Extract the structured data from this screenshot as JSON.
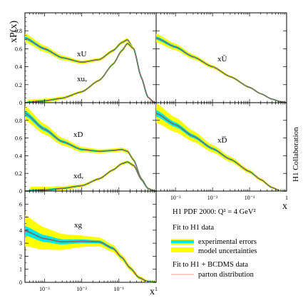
{
  "figure": {
    "ylabel": "xP(x)",
    "xlabel_right": "x",
    "xlabel_bottom": "x",
    "side_label": "H1 Collaboration",
    "legend": {
      "title": "H1 PDF 2000:  Q² = 4 GeV²",
      "group1": "Fit to H1 data",
      "exp_errors": "experimental errors",
      "model_unc": "model uncertainties",
      "group2": "Fit to H1 + BCDMS data",
      "parton": "parton distribution"
    },
    "colors": {
      "yellow_band": "#ffff00",
      "cyan_band": "#00e5ee",
      "central": "#1a4fa0",
      "outline": "#3a9a3a",
      "parton": "#ff6a6a"
    },
    "x_tick_labels": [
      "10⁻³",
      "10⁻²",
      "10⁻¹",
      "1"
    ],
    "y_ticks_top": [
      "0",
      "0.2",
      "0.4",
      "0.6",
      "0.8"
    ],
    "y_ticks_bottom": [
      "0",
      "1",
      "2",
      "3",
      "4",
      "5",
      "6"
    ]
  },
  "chart_data": [
    {
      "type": "line",
      "panel": "xU",
      "x_scale": "log",
      "xlim": [
        0.0003,
        1
      ],
      "ylim": [
        0,
        1
      ],
      "series": [
        {
          "name": "xU",
          "x": [
            0.0003,
            0.001,
            0.003,
            0.01,
            0.03,
            0.07,
            0.12,
            0.17,
            0.25,
            0.4,
            0.6,
            0.9
          ],
          "y": [
            0.72,
            0.6,
            0.5,
            0.45,
            0.48,
            0.58,
            0.67,
            0.7,
            0.6,
            0.28,
            0.06,
            0.0
          ]
        },
        {
          "name": "xuᵥ",
          "x": [
            0.0003,
            0.001,
            0.003,
            0.01,
            0.03,
            0.07,
            0.12,
            0.17,
            0.25,
            0.4,
            0.6,
            0.9
          ],
          "y": [
            0.0,
            0.02,
            0.05,
            0.12,
            0.25,
            0.43,
            0.58,
            0.66,
            0.6,
            0.28,
            0.06,
            0.0
          ]
        }
      ]
    },
    {
      "type": "line",
      "panel": "xUbar",
      "x_scale": "log",
      "xlim": [
        0.0003,
        1
      ],
      "ylim": [
        0,
        1
      ],
      "series": [
        {
          "name": "xŪ",
          "x": [
            0.0003,
            0.001,
            0.003,
            0.01,
            0.03,
            0.1,
            0.2,
            0.4,
            0.7,
            1.0
          ],
          "y": [
            0.72,
            0.62,
            0.51,
            0.4,
            0.29,
            0.17,
            0.1,
            0.04,
            0.01,
            0.0
          ]
        }
      ]
    },
    {
      "type": "line",
      "panel": "xD",
      "x_scale": "log",
      "xlim": [
        0.0003,
        1
      ],
      "ylim": [
        0,
        1
      ],
      "series": [
        {
          "name": "xD",
          "x": [
            0.0003,
            0.001,
            0.003,
            0.01,
            0.03,
            0.07,
            0.12,
            0.17,
            0.25,
            0.4,
            0.6,
            0.9
          ],
          "y": [
            0.88,
            0.7,
            0.56,
            0.47,
            0.45,
            0.46,
            0.47,
            0.45,
            0.35,
            0.14,
            0.03,
            0.0
          ]
        },
        {
          "name": "xdᵥ",
          "x": [
            0.0003,
            0.001,
            0.003,
            0.01,
            0.03,
            0.07,
            0.12,
            0.17,
            0.25,
            0.4,
            0.6,
            0.9
          ],
          "y": [
            0.0,
            0.01,
            0.03,
            0.06,
            0.14,
            0.24,
            0.31,
            0.33,
            0.29,
            0.13,
            0.03,
            0.0
          ]
        }
      ]
    },
    {
      "type": "line",
      "panel": "xDbar",
      "x_scale": "log",
      "xlim": [
        0.0003,
        1
      ],
      "ylim": [
        0,
        1
      ],
      "series": [
        {
          "name": "xD̅",
          "x": [
            0.0003,
            0.001,
            0.003,
            0.01,
            0.03,
            0.1,
            0.2,
            0.4,
            0.7,
            1.0
          ],
          "y": [
            0.88,
            0.75,
            0.62,
            0.48,
            0.36,
            0.22,
            0.13,
            0.04,
            0.0,
            0.0
          ]
        }
      ]
    },
    {
      "type": "line",
      "panel": "xg",
      "x_scale": "log",
      "xlim": [
        0.0003,
        1
      ],
      "ylim": [
        0,
        7
      ],
      "series": [
        {
          "name": "xg",
          "x": [
            0.0003,
            0.001,
            0.003,
            0.01,
            0.03,
            0.07,
            0.12,
            0.2,
            0.35,
            0.6,
            1.0
          ],
          "y": [
            3.95,
            3.35,
            3.1,
            3.15,
            3.1,
            2.6,
            1.9,
            1.1,
            0.35,
            0.05,
            0.0
          ]
        }
      ]
    }
  ]
}
